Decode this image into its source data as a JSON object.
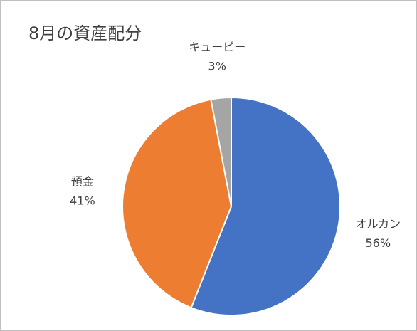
{
  "chart_data": {
    "type": "pie",
    "title": "8月の資産配分",
    "categories": [
      "オルカン",
      "預金",
      "キューピー"
    ],
    "values": [
      56,
      41,
      3
    ],
    "value_labels": [
      "56%",
      "41%",
      "3%"
    ],
    "colors": [
      "#4472c4",
      "#ed7d31",
      "#a5a5a5"
    ]
  }
}
